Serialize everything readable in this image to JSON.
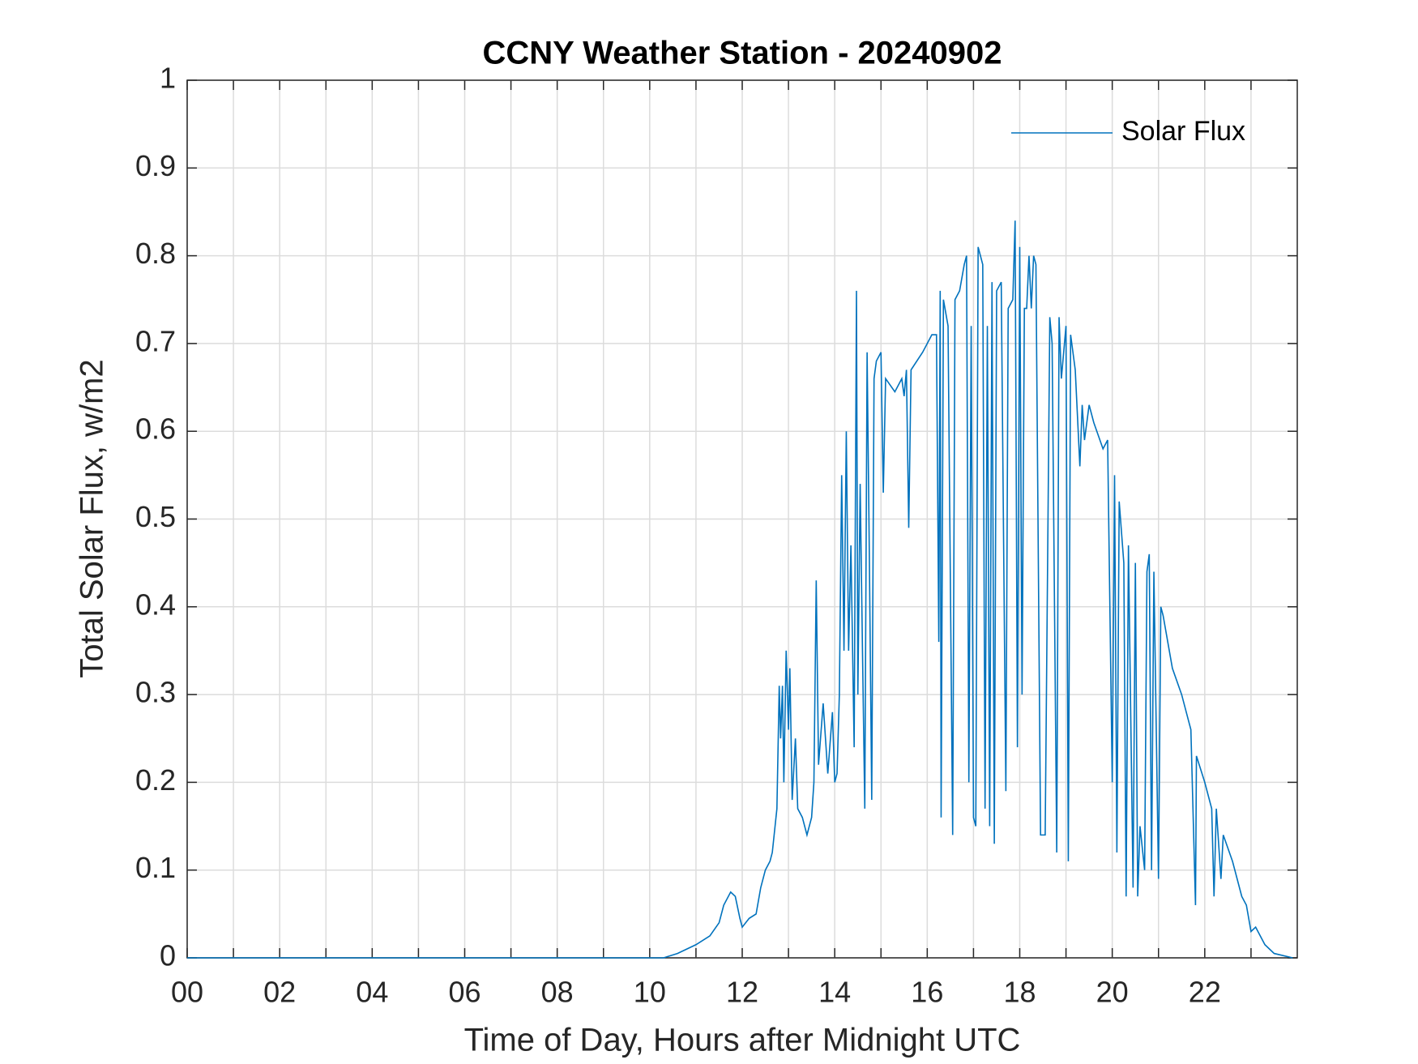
{
  "chart_data": {
    "type": "line",
    "title": "CCNY Weather Station - 20240902",
    "x_label": "Time of Day, Hours after Midnight UTC",
    "y_label": "Total Solar Flux, w/m2",
    "xlim": [
      0,
      24
    ],
    "ylim": [
      0,
      1
    ],
    "xticks": [
      {
        "value": 0,
        "label": "00"
      },
      {
        "value": 2,
        "label": "02"
      },
      {
        "value": 4,
        "label": "04"
      },
      {
        "value": 6,
        "label": "06"
      },
      {
        "value": 8,
        "label": "08"
      },
      10,
      12,
      14,
      16,
      18,
      20,
      22
    ],
    "xminorticks": [
      1,
      3,
      5,
      7,
      9,
      11,
      13,
      15,
      17,
      19,
      21,
      23
    ],
    "yticks": [
      0,
      0.1,
      0.2,
      0.3,
      0.4,
      0.5,
      0.6,
      0.7,
      0.8,
      0.9,
      1
    ],
    "grid": true,
    "legend": "northeast",
    "x": [
      0,
      10.3,
      10.6,
      11,
      11.3,
      11.5,
      11.6,
      11.75,
      11.85,
      11.95,
      12,
      12.15,
      12.3,
      12.4,
      12.5,
      12.6,
      12.65,
      12.75,
      12.8,
      12.83,
      12.87,
      12.9,
      12.95,
      13,
      13.03,
      13.08,
      13.15,
      13.2,
      13.3,
      13.4,
      13.5,
      13.55,
      13.6,
      13.65,
      13.75,
      13.85,
      13.95,
      14,
      14.05,
      14.1,
      14.15,
      14.2,
      14.25,
      14.3,
      14.35,
      14.42,
      14.47,
      14.5,
      14.55,
      14.6,
      14.65,
      14.7,
      14.75,
      14.8,
      14.85,
      14.9,
      15,
      15.05,
      15.1,
      15.3,
      15.45,
      15.5,
      15.55,
      15.6,
      15.65,
      15.9,
      16.1,
      16.2,
      16.25,
      16.28,
      16.3,
      16.35,
      16.45,
      16.55,
      16.6,
      16.7,
      16.8,
      16.85,
      16.9,
      16.95,
      17,
      17.05,
      17.1,
      17.15,
      17.2,
      17.25,
      17.3,
      17.35,
      17.4,
      17.45,
      17.5,
      17.6,
      17.7,
      17.75,
      17.85,
      17.9,
      17.95,
      18,
      18.05,
      18.1,
      18.15,
      18.2,
      18.25,
      18.3,
      18.35,
      18.45,
      18.55,
      18.65,
      18.7,
      18.8,
      18.85,
      18.9,
      19,
      19.05,
      19.1,
      19.2,
      19.3,
      19.35,
      19.4,
      19.5,
      19.6,
      19.8,
      19.9,
      20,
      20.05,
      20.1,
      20.15,
      20.25,
      20.3,
      20.35,
      20.45,
      20.5,
      20.55,
      20.6,
      20.7,
      20.75,
      20.8,
      20.85,
      20.9,
      21,
      21.05,
      21.1,
      21.3,
      21.5,
      21.7,
      21.8,
      21.82,
      22,
      22.15,
      22.2,
      22.25,
      22.35,
      22.4,
      22.6,
      22.8,
      22.9,
      23,
      23.1,
      23.3,
      23.5,
      23.9
    ],
    "series": [
      {
        "name": "Solar Flux",
        "color": "#0072bd",
        "values": [
          0,
          0,
          0.005,
          0.015,
          0.025,
          0.04,
          0.06,
          0.075,
          0.07,
          0.045,
          0.035,
          0.045,
          0.05,
          0.08,
          0.1,
          0.11,
          0.12,
          0.17,
          0.31,
          0.25,
          0.31,
          0.2,
          0.35,
          0.26,
          0.33,
          0.18,
          0.25,
          0.17,
          0.16,
          0.14,
          0.16,
          0.2,
          0.43,
          0.22,
          0.29,
          0.21,
          0.28,
          0.2,
          0.21,
          0.3,
          0.55,
          0.35,
          0.6,
          0.35,
          0.47,
          0.24,
          0.76,
          0.3,
          0.54,
          0.35,
          0.17,
          0.69,
          0.45,
          0.18,
          0.66,
          0.68,
          0.69,
          0.53,
          0.66,
          0.645,
          0.66,
          0.64,
          0.67,
          0.49,
          0.67,
          0.69,
          0.71,
          0.71,
          0.36,
          0.76,
          0.16,
          0.75,
          0.72,
          0.14,
          0.75,
          0.76,
          0.79,
          0.8,
          0.2,
          0.72,
          0.16,
          0.15,
          0.81,
          0.8,
          0.79,
          0.17,
          0.72,
          0.15,
          0.77,
          0.13,
          0.76,
          0.77,
          0.19,
          0.74,
          0.75,
          0.84,
          0.24,
          0.81,
          0.3,
          0.74,
          0.74,
          0.8,
          0.74,
          0.8,
          0.79,
          0.14,
          0.14,
          0.73,
          0.7,
          0.12,
          0.73,
          0.66,
          0.72,
          0.11,
          0.71,
          0.67,
          0.56,
          0.63,
          0.59,
          0.63,
          0.61,
          0.58,
          0.59,
          0.2,
          0.55,
          0.12,
          0.52,
          0.45,
          0.07,
          0.47,
          0.08,
          0.45,
          0.07,
          0.15,
          0.1,
          0.44,
          0.46,
          0.1,
          0.44,
          0.09,
          0.4,
          0.39,
          0.33,
          0.3,
          0.26,
          0.06,
          0.23,
          0.2,
          0.17,
          0.07,
          0.17,
          0.09,
          0.14,
          0.11,
          0.07,
          0.06,
          0.03,
          0.035,
          0.015,
          0.005,
          0
        ]
      }
    ]
  }
}
